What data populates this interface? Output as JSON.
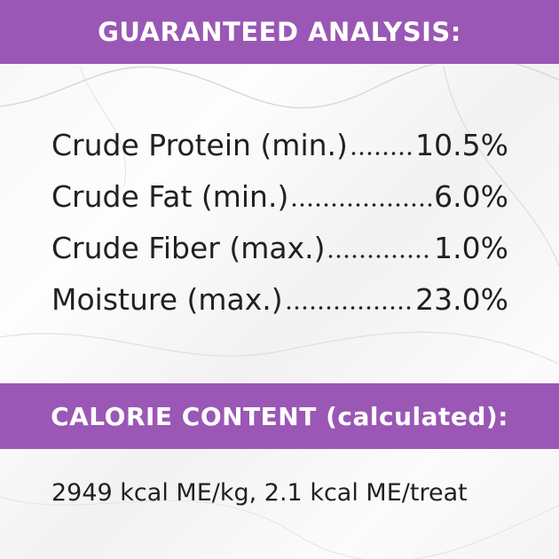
{
  "header": {
    "title": "GUARANTEED ANALYSIS:"
  },
  "analysis": {
    "rows": [
      {
        "label": "Crude Protein (min.)",
        "value": "10.5%"
      },
      {
        "label": "Crude Fat (min.)",
        "value": "6.0%"
      },
      {
        "label": "Crude Fiber (max.)",
        "value": "1.0%"
      },
      {
        "label": "Moisture (max.)",
        "value": "23.0%"
      }
    ]
  },
  "calorie": {
    "title": "CALORIE CONTENT (calculated):",
    "text": "2949 kcal ME/kg, 2.1 kcal ME/treat"
  }
}
